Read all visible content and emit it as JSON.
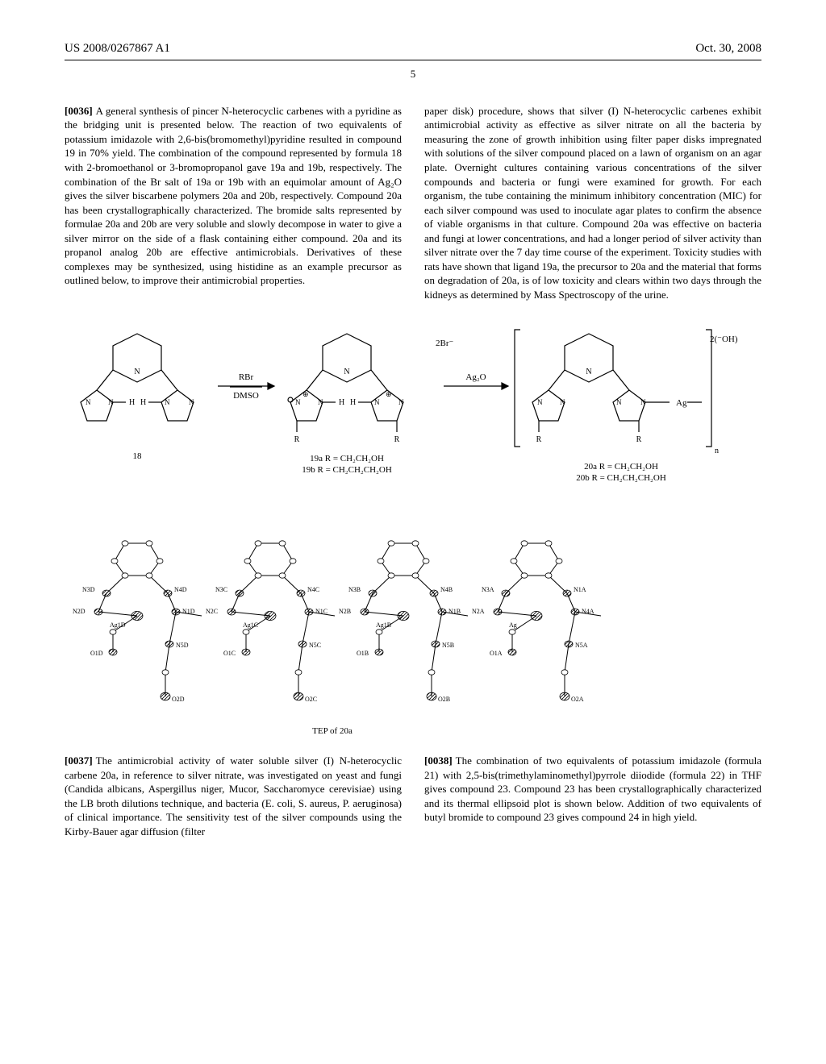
{
  "header": {
    "left": "US 2008/0267867 A1",
    "right": "Oct. 30, 2008",
    "pageNumber": "5"
  },
  "paragraphs": {
    "p36": {
      "num": "[0036]",
      "text": "A general synthesis of pincer N-heterocyclic carbenes with a pyridine as the bridging unit is presented below. The reaction of two equivalents of potassium imidazole with 2,6-bis(bromomethyl)pyridine resulted in compound 19 in 70% yield. The combination of the compound represented by formula 18 with 2-bromoethanol or 3-bromopropanol gave 19a and 19b, respectively. The combination of the Br salt of 19a or 19b with an equimolar amount of Ag₂O gives the silver biscarbene polymers 20a and 20b, respectively. Compound 20a has been crystallographically characterized. The bromide salts represented by formulae 20a and 20b are very soluble and slowly decompose in water to give a silver mirror on the side of a flask containing either compound. 20a and its propanol analog 20b are effective antimicrobials. Derivatives of these complexes may be synthesized, using histidine as an example precursor as outlined below, to improve their antimicrobial properties."
    },
    "p36b": {
      "text": "paper disk) procedure, shows that silver (I) N-heterocyclic carbenes exhibit antimicrobial activity as effective as silver nitrate on all the bacteria by measuring the zone of growth inhibition using filter paper disks impregnated with solutions of the silver compound placed on a lawn of organism on an agar plate. Overnight cultures containing various concentrations of the silver compounds and bacteria or fungi were examined for growth. For each organism, the tube containing the minimum inhibitory concentration (MIC) for each silver compound was used to inoculate agar plates to confirm the absence of viable organisms in that culture. Compound 20a was effective on bacteria and fungi at lower concentrations, and had a longer period of silver activity than silver nitrate over the 7 day time course of the experiment. Toxicity studies with rats have shown that ligand 19a, the precursor to 20a and the material that forms on degradation of 20a, is of low toxicity and clears within two days through the kidneys as determined by Mass Spectroscopy of the urine."
    },
    "p37": {
      "num": "[0037]",
      "text": "The antimicrobial activity of water soluble silver (I) N-heterocyclic carbene 20a, in reference to silver nitrate, was investigated on yeast and fungi (Candida albicans, Aspergillus niger, Mucor, Saccharomyce cerevisiae) using the LB broth dilutions technique, and bacteria (E. coli, S. aureus, P. aeruginosa) of clinical importance. The sensitivity test of the silver compounds using the Kirby-Bauer agar diffusion (filter"
    },
    "p38": {
      "num": "[0038]",
      "text": "The combination of two equivalents of potassium imidazole (formula 21) with 2,5-bis(trimethylaminomethyl)pyrrole diiodide (formula 22) in THF gives compound 23. Compound 23 has been crystallographically characterized and its thermal ellipsoid plot is shown below. Addition of two equivalents of butyl bromide to compound 23 gives compound 24 in high yield."
    }
  },
  "scheme1": {
    "labels": {
      "compound18": "18",
      "compound19aR": "19a R = CH₂CH₂OH",
      "compound19bR": "19b R = CH₂CH₂CH₂OH",
      "compound20aR": "20a R = CH₂CH₂OH",
      "compound20bR": "20b R = CH₂CH₂CH₂OH",
      "reagent1top": "RBr",
      "reagent1bot": "DMSO",
      "reagent2": "Ag₂O",
      "anion1": "2Br⁻",
      "anion2": "2(⁻OH)"
    }
  },
  "tep": {
    "atomLabels": [
      "N3D",
      "N2D",
      "N4D",
      "N1D",
      "Ag1D",
      "O1D",
      "N5D",
      "O2D",
      "N3C",
      "N2C",
      "N4C",
      "N1C",
      "Ag1C",
      "O1C",
      "N5C",
      "O2C",
      "N3B",
      "N2B",
      "N4B",
      "N1B",
      "Ag1B",
      "O1B",
      "N5B",
      "O2B",
      "N3A",
      "N2A",
      "N1A",
      "N4A",
      "Ag",
      "O1A",
      "N5A",
      "O2A"
    ],
    "caption": "TEP of 20a"
  },
  "styling": {
    "bodyFont": "Times New Roman",
    "bodyFontSize": 13,
    "headerFontSize": 15,
    "lineColor": "#000000",
    "textColor": "#000000",
    "background": "#ffffff"
  }
}
